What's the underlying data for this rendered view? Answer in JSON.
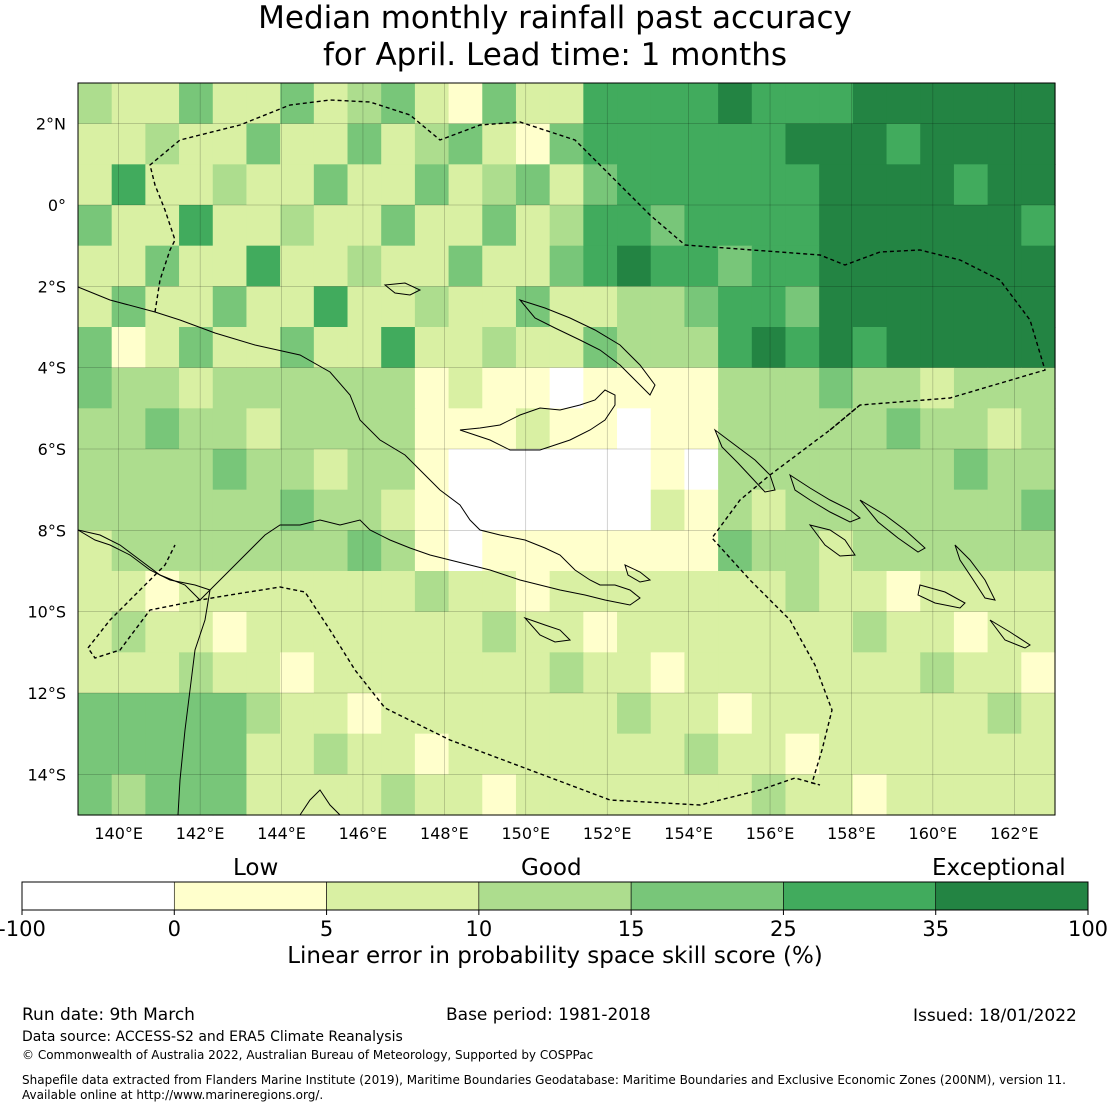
{
  "title": {
    "line1": "Median monthly rainfall past accuracy",
    "line2": "for April. Lead time: 1 months"
  },
  "map": {
    "lon_range": [
      139,
      163
    ],
    "lat_range": [
      -15,
      3
    ],
    "lon_ticks": [
      140,
      142,
      144,
      146,
      148,
      150,
      152,
      154,
      156,
      158,
      160,
      162
    ],
    "lat_ticks": [
      2,
      0,
      -2,
      -4,
      -6,
      -8,
      -10,
      -12,
      -14
    ],
    "lon_tick_labels": [
      "140°E",
      "142°E",
      "144°E",
      "146°E",
      "148°E",
      "150°E",
      "152°E",
      "154°E",
      "156°E",
      "158°E",
      "160°E",
      "162°E"
    ],
    "lat_tick_labels": [
      "2°N",
      "0°",
      "2°S",
      "4°S",
      "6°S",
      "8°S",
      "10°S",
      "12°S",
      "14°S"
    ],
    "grid": true
  },
  "colorbar": {
    "categories": [
      "Low",
      "Good",
      "Exceptional"
    ],
    "bounds": [
      "-100",
      "0",
      "5",
      "10",
      "15",
      "25",
      "35",
      "100"
    ],
    "colors": [
      "#ffffff",
      "#ffffcc",
      "#d9f0a3",
      "#addd8e",
      "#78c679",
      "#41ab5d",
      "#238443"
    ],
    "label": "Linear error in probability space skill score (%)"
  },
  "footer": {
    "run_date": "Run date: 9th March",
    "base_period": "Base period: 1981-2018",
    "issued": "Issued: 18/01/2022",
    "data_source": "Data source: ACCESS-S2 and ERA5 Climate Reanalysis",
    "copyright": "© Commonwealth of Australia 2022, Australian Bureau of Meteorology, Supported by COSPPac",
    "shapefile_line1": "Shapefile data extracted from Flanders Marine Institute (2019), Maritime Boundaries Geodatabase: Maritime Boundaries and Exclusive Economic Zones (200NM), version 11.",
    "shapefile_line2": "Available online at http://www.marineregions.org/."
  }
}
